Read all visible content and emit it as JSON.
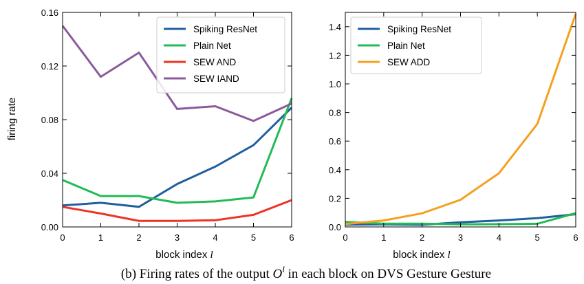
{
  "caption": {
    "prefix": "(b) Firing rates of the output",
    "symbol": "O",
    "superscript": "l",
    "suffix": "in each block on DVS Gesture Gesture"
  },
  "chart_data": [
    {
      "type": "line",
      "xlabel": "block index",
      "xlabel_symbol": "l",
      "ylabel": "firing rate",
      "x": [
        0,
        1,
        2,
        3,
        4,
        5,
        6
      ],
      "xlim": [
        0,
        6
      ],
      "ylim": [
        0,
        0.16
      ],
      "xticks": [
        "0",
        "1",
        "2",
        "3",
        "4",
        "5",
        "6"
      ],
      "yticks": [
        {
          "value": 0.0,
          "label": "0.00"
        },
        {
          "value": 0.04,
          "label": "0.04"
        },
        {
          "value": 0.08,
          "label": "0.08"
        },
        {
          "value": 0.12,
          "label": "0.12"
        },
        {
          "value": 0.16,
          "label": "0.16"
        }
      ],
      "legend_position": "top-right",
      "grid": false,
      "series": [
        {
          "name": "Spiking ResNet",
          "color": "#1f5fa0",
          "values": [
            0.016,
            0.018,
            0.015,
            0.032,
            0.045,
            0.061,
            0.089
          ]
        },
        {
          "name": "Plain Net",
          "color": "#22bb55",
          "values": [
            0.035,
            0.023,
            0.023,
            0.018,
            0.019,
            0.022,
            0.096
          ]
        },
        {
          "name": "SEW AND",
          "color": "#ee3322",
          "values": [
            0.015,
            0.01,
            0.0045,
            0.0045,
            0.005,
            0.009,
            0.02
          ]
        },
        {
          "name": "SEW IAND",
          "color": "#8a5a9c",
          "values": [
            0.15,
            0.112,
            0.13,
            0.088,
            0.09,
            0.079,
            0.092
          ]
        }
      ]
    },
    {
      "type": "line",
      "xlabel": "block index",
      "xlabel_symbol": "l",
      "ylabel": "",
      "x": [
        0,
        1,
        2,
        3,
        4,
        5,
        6
      ],
      "xlim": [
        0,
        6
      ],
      "ylim": [
        0,
        1.5
      ],
      "xticks": [
        "0",
        "1",
        "2",
        "3",
        "4",
        "5",
        "6"
      ],
      "yticks": [
        {
          "value": 0.0,
          "label": "0.0"
        },
        {
          "value": 0.2,
          "label": "0.2"
        },
        {
          "value": 0.4,
          "label": "0.4"
        },
        {
          "value": 0.6,
          "label": "0.6"
        },
        {
          "value": 0.8,
          "label": "0.8"
        },
        {
          "value": 1.0,
          "label": "1.0"
        },
        {
          "value": 1.2,
          "label": "1.2"
        },
        {
          "value": 1.4,
          "label": "1.4"
        }
      ],
      "legend_position": "top-left",
      "grid": false,
      "series": [
        {
          "name": "Spiking ResNet",
          "color": "#1f5fa0",
          "values": [
            0.016,
            0.018,
            0.015,
            0.032,
            0.045,
            0.061,
            0.089
          ]
        },
        {
          "name": "Plain Net",
          "color": "#22bb55",
          "values": [
            0.035,
            0.023,
            0.023,
            0.018,
            0.019,
            0.022,
            0.096
          ]
        },
        {
          "name": "SEW ADD",
          "color": "#f5a020",
          "values": [
            0.02,
            0.045,
            0.095,
            0.19,
            0.375,
            0.72,
            1.49
          ]
        }
      ]
    }
  ]
}
